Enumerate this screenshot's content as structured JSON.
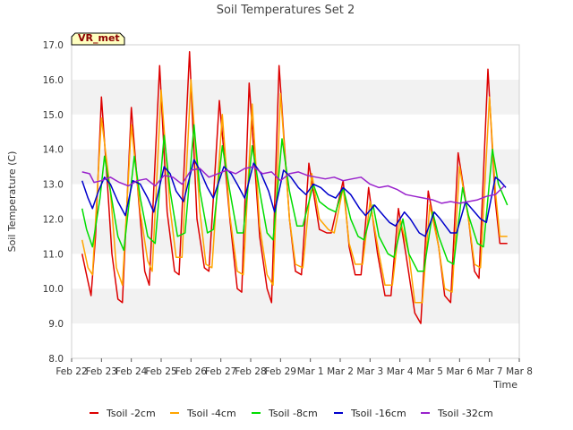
{
  "chart_data": {
    "type": "line",
    "title": "Soil Temperatures Set 2",
    "xlabel": "Time",
    "ylabel": "Soil Temperature (C)",
    "badge": "VR_met",
    "ylim": [
      8.0,
      17.0
    ],
    "y_ticks": [
      "8.0",
      "9.0",
      "10.0",
      "11.0",
      "12.0",
      "13.0",
      "14.0",
      "15.0",
      "16.0",
      "17.0"
    ],
    "x_ticks": [
      "Feb 22",
      "Feb 23",
      "Feb 24",
      "Feb 25",
      "Feb 26",
      "Feb 27",
      "Feb 28",
      "Feb 29",
      "Mar 1",
      "Mar 2",
      "Mar 3",
      "Mar 4",
      "Mar 5",
      "Mar 6",
      "Mar 7",
      "Mar 8"
    ],
    "x_range_days": [
      0,
      15
    ],
    "x_unit_note": "days since Feb 22",
    "grid": "horizontal bands",
    "legend_position": "bottom",
    "series": [
      {
        "name": "Tsoil -2cm",
        "color": "#dd0000",
        "x": [
          0.35,
          0.55,
          0.65,
          0.8,
          1.0,
          1.2,
          1.35,
          1.55,
          1.7,
          2.0,
          2.25,
          2.45,
          2.6,
          2.95,
          3.2,
          3.45,
          3.6,
          3.95,
          4.2,
          4.45,
          4.6,
          4.95,
          5.3,
          5.55,
          5.7,
          5.95,
          6.3,
          6.55,
          6.7,
          6.95,
          7.3,
          7.5,
          7.7,
          7.95,
          8.3,
          8.55,
          8.7,
          9.1,
          9.3,
          9.5,
          9.7,
          9.95,
          10.25,
          10.5,
          10.7,
          10.95,
          11.2,
          11.5,
          11.7,
          11.95,
          12.3,
          12.5,
          12.7,
          12.95,
          13.3,
          13.5,
          13.65,
          13.95,
          14.2,
          14.35,
          14.6
        ],
        "values": [
          11.0,
          10.2,
          9.8,
          11.5,
          15.5,
          13.0,
          11.0,
          9.7,
          9.6,
          15.2,
          12.5,
          10.5,
          10.1,
          16.4,
          12.2,
          10.5,
          10.4,
          16.8,
          12.0,
          10.6,
          10.5,
          15.4,
          12.0,
          10.0,
          9.9,
          15.9,
          11.5,
          10.0,
          9.6,
          16.4,
          12.0,
          10.5,
          10.4,
          13.6,
          11.7,
          11.6,
          11.6,
          13.1,
          11.2,
          10.4,
          10.4,
          12.9,
          11.0,
          9.8,
          9.8,
          12.3,
          11.0,
          9.3,
          9.0,
          12.8,
          11.2,
          9.8,
          9.6,
          13.9,
          12.0,
          10.5,
          10.3,
          16.3,
          12.5,
          11.3,
          11.3
        ]
      },
      {
        "name": "Tsoil -4cm",
        "color": "#ffa500",
        "x": [
          0.35,
          0.55,
          0.7,
          1.0,
          1.3,
          1.5,
          1.7,
          2.0,
          2.3,
          2.55,
          2.7,
          3.0,
          3.3,
          3.5,
          3.7,
          4.0,
          4.3,
          4.5,
          4.7,
          5.05,
          5.3,
          5.55,
          5.75,
          6.05,
          6.3,
          6.55,
          6.75,
          7.0,
          7.3,
          7.5,
          7.75,
          8.05,
          8.3,
          8.6,
          8.8,
          9.1,
          9.3,
          9.5,
          9.75,
          10.0,
          10.3,
          10.5,
          10.75,
          11.0,
          11.3,
          11.5,
          11.75,
          12.0,
          12.3,
          12.5,
          12.75,
          13.0,
          13.3,
          13.5,
          13.7,
          14.0,
          14.2,
          14.35,
          14.6
        ],
        "values": [
          11.4,
          10.6,
          10.4,
          14.9,
          12.8,
          10.6,
          10.1,
          14.7,
          12.2,
          10.8,
          10.5,
          15.7,
          12.3,
          10.9,
          10.9,
          16.0,
          12.2,
          10.7,
          10.6,
          15.0,
          12.1,
          10.5,
          10.4,
          15.3,
          11.8,
          10.4,
          10.1,
          15.6,
          12.0,
          10.7,
          10.6,
          13.3,
          12.0,
          11.7,
          11.6,
          12.9,
          11.3,
          10.7,
          10.7,
          12.5,
          11.0,
          10.1,
          10.1,
          12.0,
          11.0,
          9.6,
          9.6,
          12.4,
          11.2,
          10.0,
          9.9,
          13.5,
          12.0,
          10.7,
          10.6,
          15.5,
          12.8,
          11.5,
          11.5
        ]
      },
      {
        "name": "Tsoil -8cm",
        "color": "#00dd00",
        "x": [
          0.35,
          0.5,
          0.7,
          0.95,
          1.1,
          1.3,
          1.55,
          1.75,
          2.1,
          2.3,
          2.55,
          2.8,
          3.1,
          3.3,
          3.55,
          3.8,
          4.1,
          4.3,
          4.55,
          4.75,
          5.05,
          5.3,
          5.55,
          5.75,
          6.05,
          6.3,
          6.55,
          6.75,
          7.05,
          7.3,
          7.55,
          7.75,
          8.1,
          8.3,
          8.6,
          8.85,
          9.1,
          9.35,
          9.6,
          9.8,
          10.1,
          10.3,
          10.6,
          10.8,
          11.1,
          11.3,
          11.6,
          11.8,
          12.1,
          12.3,
          12.6,
          12.8,
          13.1,
          13.3,
          13.6,
          13.8,
          14.1,
          14.3,
          14.6
        ],
        "values": [
          12.3,
          11.7,
          11.2,
          12.6,
          13.8,
          12.8,
          11.5,
          11.1,
          13.8,
          12.6,
          11.5,
          11.3,
          14.4,
          12.8,
          11.5,
          11.6,
          14.7,
          12.8,
          11.6,
          11.7,
          14.1,
          12.8,
          11.6,
          11.6,
          14.1,
          12.8,
          11.6,
          11.4,
          14.3,
          12.8,
          11.8,
          11.8,
          13.0,
          12.5,
          12.3,
          12.2,
          12.9,
          12.0,
          11.5,
          11.4,
          12.4,
          11.5,
          11.0,
          10.9,
          12.0,
          11.0,
          10.5,
          10.5,
          12.2,
          11.5,
          10.8,
          10.7,
          12.9,
          12.1,
          11.3,
          11.2,
          14.0,
          13.0,
          12.4
        ]
      },
      {
        "name": "Tsoil -16cm",
        "color": "#0000cc",
        "x": [
          0.35,
          0.55,
          0.7,
          0.9,
          1.1,
          1.3,
          1.55,
          1.8,
          2.05,
          2.3,
          2.55,
          2.75,
          3.1,
          3.3,
          3.5,
          3.75,
          4.1,
          4.3,
          4.55,
          4.75,
          5.1,
          5.35,
          5.55,
          5.8,
          6.1,
          6.35,
          6.6,
          6.8,
          7.1,
          7.35,
          7.6,
          7.85,
          8.1,
          8.35,
          8.6,
          8.85,
          9.1,
          9.35,
          9.65,
          9.85,
          10.15,
          10.35,
          10.65,
          10.85,
          11.15,
          11.35,
          11.65,
          11.85,
          12.15,
          12.35,
          12.7,
          12.9,
          13.2,
          13.4,
          13.7,
          13.9,
          14.2,
          14.35,
          14.55
        ],
        "values": [
          13.1,
          12.6,
          12.3,
          12.8,
          13.2,
          13.0,
          12.5,
          12.1,
          13.1,
          13.0,
          12.6,
          12.2,
          13.5,
          13.3,
          12.8,
          12.5,
          13.7,
          13.4,
          12.9,
          12.6,
          13.5,
          13.3,
          13.0,
          12.6,
          13.6,
          13.3,
          12.8,
          12.2,
          13.4,
          13.2,
          12.9,
          12.7,
          13.0,
          12.9,
          12.7,
          12.6,
          12.9,
          12.7,
          12.3,
          12.1,
          12.4,
          12.2,
          11.9,
          11.8,
          12.2,
          12.0,
          11.6,
          11.5,
          12.2,
          12.0,
          11.6,
          11.6,
          12.5,
          12.3,
          12.0,
          11.9,
          13.2,
          13.1,
          12.9
        ]
      },
      {
        "name": "Tsoil -32cm",
        "color": "#9922cc",
        "x": [
          0.35,
          0.6,
          0.75,
          1.0,
          1.3,
          1.6,
          1.9,
          2.2,
          2.5,
          2.8,
          3.1,
          3.4,
          3.7,
          4.0,
          4.3,
          4.6,
          4.9,
          5.2,
          5.5,
          5.8,
          6.1,
          6.4,
          6.7,
          7.0,
          7.3,
          7.6,
          7.9,
          8.2,
          8.5,
          8.8,
          9.1,
          9.4,
          9.7,
          10.0,
          10.3,
          10.6,
          10.9,
          11.2,
          11.5,
          11.8,
          12.1,
          12.4,
          12.7,
          13.0,
          13.3,
          13.6,
          13.9,
          14.2,
          14.5
        ],
        "values": [
          13.35,
          13.3,
          13.05,
          13.1,
          13.2,
          13.05,
          12.95,
          13.1,
          13.15,
          12.95,
          13.25,
          13.2,
          13.0,
          13.4,
          13.45,
          13.2,
          13.3,
          13.4,
          13.3,
          13.45,
          13.5,
          13.3,
          13.35,
          13.1,
          13.3,
          13.35,
          13.25,
          13.2,
          13.15,
          13.2,
          13.1,
          13.15,
          13.2,
          13.0,
          12.9,
          12.95,
          12.85,
          12.7,
          12.65,
          12.6,
          12.55,
          12.45,
          12.5,
          12.45,
          12.5,
          12.55,
          12.65,
          12.7,
          12.95
        ]
      }
    ]
  }
}
